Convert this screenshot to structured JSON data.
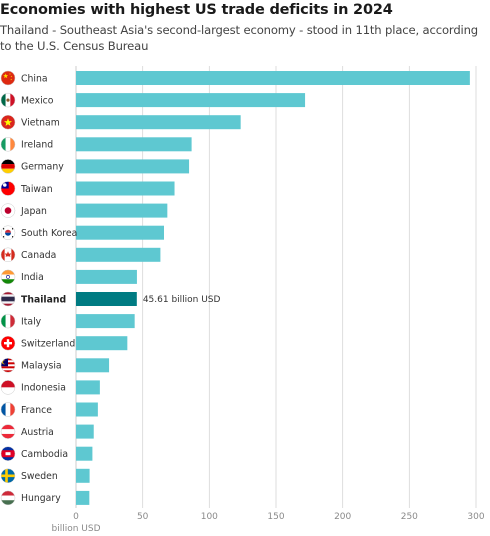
{
  "chart_data": {
    "type": "bar",
    "orientation": "horizontal",
    "title": "Economies with highest US trade deficits in 2024",
    "subtitle": "Thailand - Southeast Asia's second-largest economy - stood in 11th place, according to the U.S. Census Bureau",
    "categories": [
      "China",
      "Mexico",
      "Vietnam",
      "Ireland",
      "Germany",
      "Taiwan",
      "Japan",
      "South Korea",
      "Canada",
      "India",
      "Thailand",
      "Italy",
      "Switzerland",
      "Malaysia",
      "Indonesia",
      "France",
      "Austria",
      "Cambodia",
      "Sweden",
      "Hungary"
    ],
    "flag_icons": [
      "flag-china",
      "flag-mexico",
      "flag-vietnam",
      "flag-ireland",
      "flag-germany",
      "flag-taiwan",
      "flag-japan",
      "flag-south-korea",
      "flag-canada",
      "flag-india",
      "flag-thailand",
      "flag-italy",
      "flag-switzerland",
      "flag-malaysia",
      "flag-indonesia",
      "flag-france",
      "flag-austria",
      "flag-cambodia",
      "flag-sweden",
      "flag-hungary"
    ],
    "values": [
      295.4,
      171.8,
      123.5,
      86.7,
      84.8,
      73.9,
      68.5,
      66.0,
      63.3,
      45.7,
      45.61,
      44.0,
      38.5,
      24.8,
      17.9,
      16.4,
      13.3,
      12.3,
      10.2,
      10.0
    ],
    "highlight": "Thailand",
    "highlight_label": "45.61 billion USD",
    "xlim": [
      0,
      300
    ],
    "xticks": [
      0,
      50,
      100,
      150,
      200,
      250,
      300
    ],
    "xtick_labels": [
      "0",
      "50",
      "100",
      "150",
      "200",
      "250",
      "300"
    ],
    "xlabel": "billion USD",
    "grid": true,
    "colors": {
      "bar": "#5ec8d1",
      "highlight": "#007b82",
      "grid": "#d6d6d6"
    }
  }
}
